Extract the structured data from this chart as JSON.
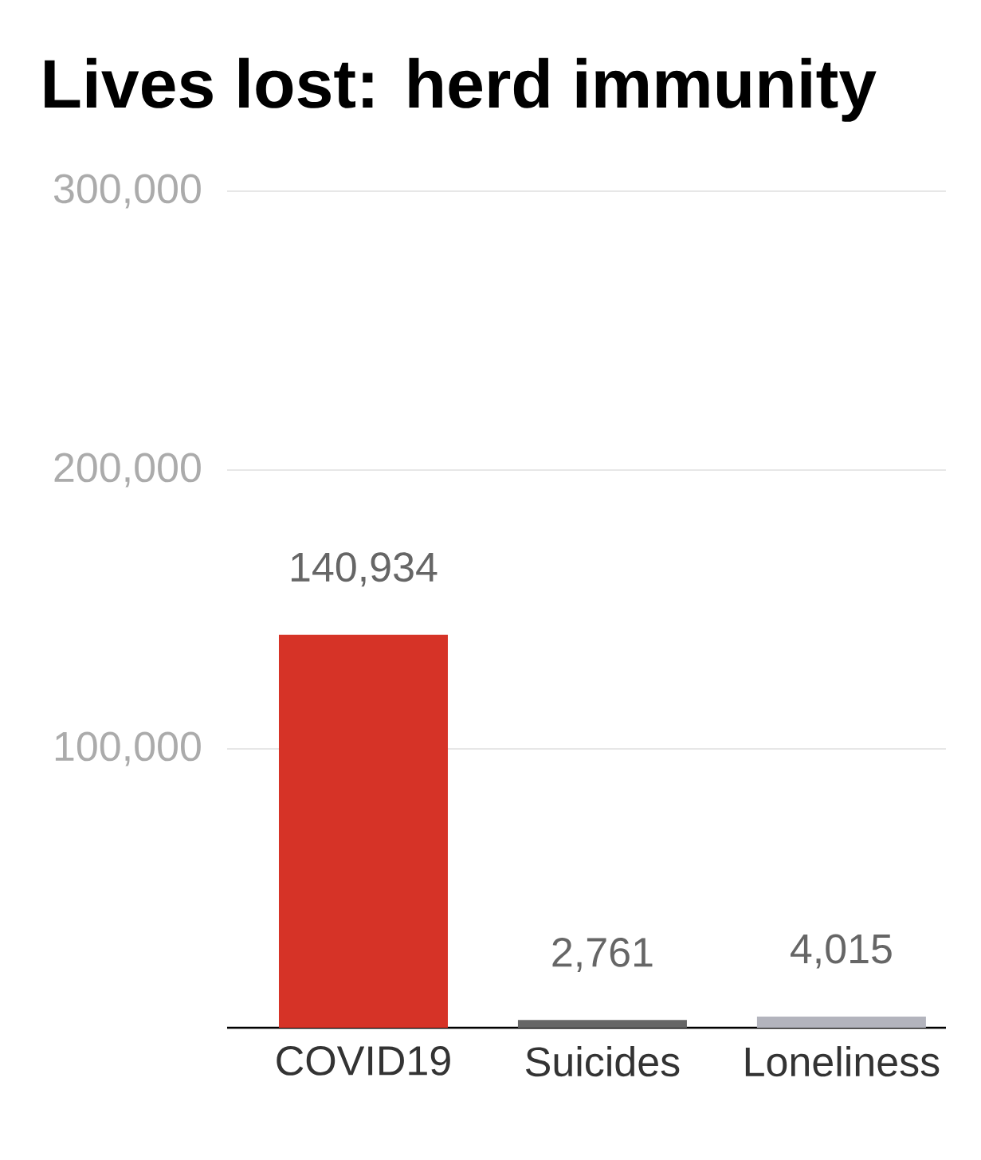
{
  "chart_data": {
    "type": "bar",
    "title": "Lives lost: herd immunity",
    "categories": [
      "COVID19",
      "Suicides",
      "Loneliness"
    ],
    "values": [
      140934,
      2761,
      4015
    ],
    "colors": [
      "#d63327",
      "#666666",
      "#b3b4bd"
    ],
    "value_labels": [
      "140,934",
      "2,761",
      "4,015"
    ],
    "ylim": [
      0,
      300000
    ],
    "yticks": [
      {
        "value": 0,
        "label": null
      },
      {
        "value": 100000,
        "label": "100,000"
      },
      {
        "value": 200000,
        "label": "200,000"
      },
      {
        "value": 300000,
        "label": "300,000"
      }
    ],
    "grid": "y"
  }
}
